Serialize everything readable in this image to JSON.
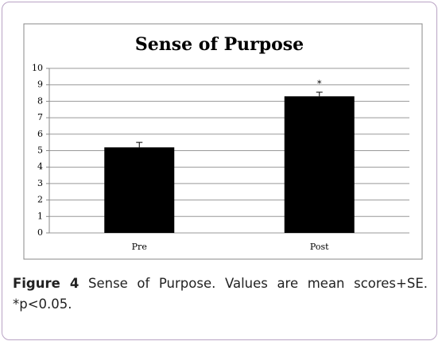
{
  "chart_data": {
    "type": "bar",
    "title": "Sense of Purpose",
    "categories": [
      "Pre",
      "Post"
    ],
    "values": [
      5.2,
      8.3
    ],
    "errors": [
      0.3,
      0.25
    ],
    "color": "#000000",
    "ylim": [
      0,
      10
    ],
    "yticks": [
      0,
      1,
      2,
      3,
      4,
      5,
      6,
      7,
      8,
      9,
      10
    ],
    "grid": true,
    "annotations": [
      {
        "text": "*",
        "x": "Post"
      }
    ]
  },
  "caption": {
    "label": "Figure 4",
    "text": "Sense of Purpose. Values are mean scores+SE. *p<0.05."
  }
}
